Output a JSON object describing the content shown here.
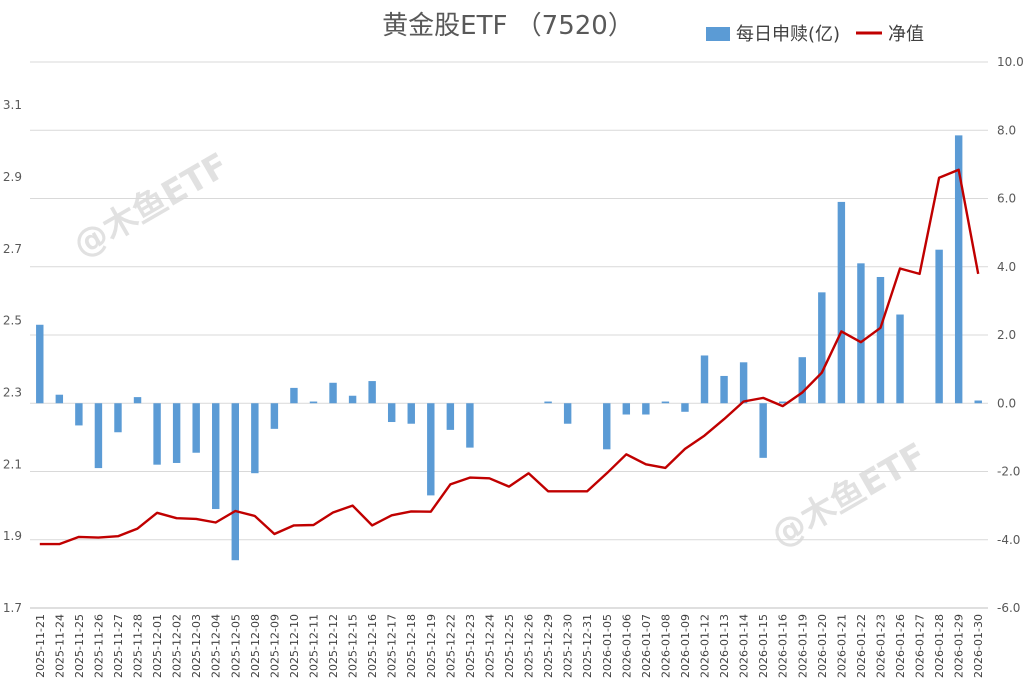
{
  "chart_data": {
    "type": "bar+line",
    "title": "黄金股ETF （7520）",
    "categories": [
      "2025-11-21",
      "2025-11-24",
      "2025-11-25",
      "2025-11-26",
      "2025-11-27",
      "2025-11-28",
      "2025-12-01",
      "2025-12-02",
      "2025-12-03",
      "2025-12-04",
      "2025-12-05",
      "2025-12-08",
      "2025-12-09",
      "2025-12-10",
      "2025-12-11",
      "2025-12-12",
      "2025-12-15",
      "2025-12-16",
      "2025-12-17",
      "2025-12-18",
      "2025-12-19",
      "2025-12-22",
      "2025-12-23",
      "2025-12-24",
      "2025-12-25",
      "2025-12-26",
      "2025-12-29",
      "2025-12-30",
      "2025-12-31",
      "2026-01-05",
      "2026-01-06",
      "2026-01-07",
      "2026-01-08",
      "2026-01-09",
      "2026-01-12",
      "2026-01-13",
      "2026-01-14",
      "2026-01-15",
      "2026-01-16",
      "2026-01-19",
      "2026-01-20",
      "2026-01-21",
      "2026-01-22",
      "2026-01-23",
      "2026-01-26",
      "2026-01-27",
      "2026-01-28",
      "2026-01-29",
      "2026-01-30"
    ],
    "series": [
      {
        "name": "每日申赎(亿)",
        "kind": "bar",
        "axis": "right",
        "color": "#5b9bd5",
        "values": [
          2.3,
          0.25,
          -0.65,
          -1.9,
          -0.85,
          0.18,
          -1.8,
          -1.75,
          -1.45,
          -3.1,
          -4.6,
          -2.05,
          -0.75,
          0.45,
          0.05,
          0.6,
          0.22,
          0.65,
          -0.55,
          -0.6,
          -2.7,
          -0.78,
          -1.3,
          0,
          0,
          0,
          0.05,
          -0.6,
          0,
          -1.35,
          -0.33,
          -0.33,
          0.05,
          -0.25,
          1.4,
          0.8,
          1.2,
          -1.6,
          0.05,
          1.35,
          3.25,
          5.9,
          4.1,
          3.7,
          2.6,
          0,
          4.5,
          7.85,
          0.08
        ]
      },
      {
        "name": "净值",
        "kind": "line",
        "axis": "left",
        "color": "#c00000",
        "values": [
          1.878,
          1.878,
          1.898,
          1.896,
          1.9,
          1.921,
          1.965,
          1.95,
          1.948,
          1.938,
          1.97,
          1.956,
          1.906,
          1.93,
          1.931,
          1.966,
          1.985,
          1.93,
          1.958,
          1.969,
          1.968,
          2.044,
          2.063,
          2.061,
          2.038,
          2.075,
          2.025,
          2.025,
          2.025,
          2.075,
          2.128,
          2.1,
          2.09,
          2.143,
          2.18,
          2.226,
          2.275,
          2.285,
          2.262,
          2.3,
          2.355,
          2.47,
          2.44,
          2.48,
          2.645,
          2.63,
          2.898,
          2.92,
          2.63
        ]
      }
    ],
    "y_left": {
      "min": 1.7,
      "max": 3.22,
      "ticks": [
        1.7,
        1.9,
        2.1,
        2.3,
        2.5,
        2.7,
        2.9,
        3.1
      ],
      "tick_labels": [
        "1.7",
        "1.9",
        "2.1",
        "2.3",
        "2.5",
        "2.7",
        "2.9",
        "3.1"
      ]
    },
    "y_right": {
      "min": -6.0,
      "max": 10.0,
      "ticks": [
        -6,
        -4,
        -2,
        0,
        2,
        4,
        6,
        8,
        10
      ],
      "tick_labels": [
        "-6.0",
        "-4.0",
        "-2.0",
        "0.0",
        "2.0",
        "4.0",
        "6.0",
        "8.0",
        "10.0"
      ]
    },
    "legend": {
      "position": "top-right"
    },
    "grid": true,
    "watermark": "@木鱼ETF"
  }
}
